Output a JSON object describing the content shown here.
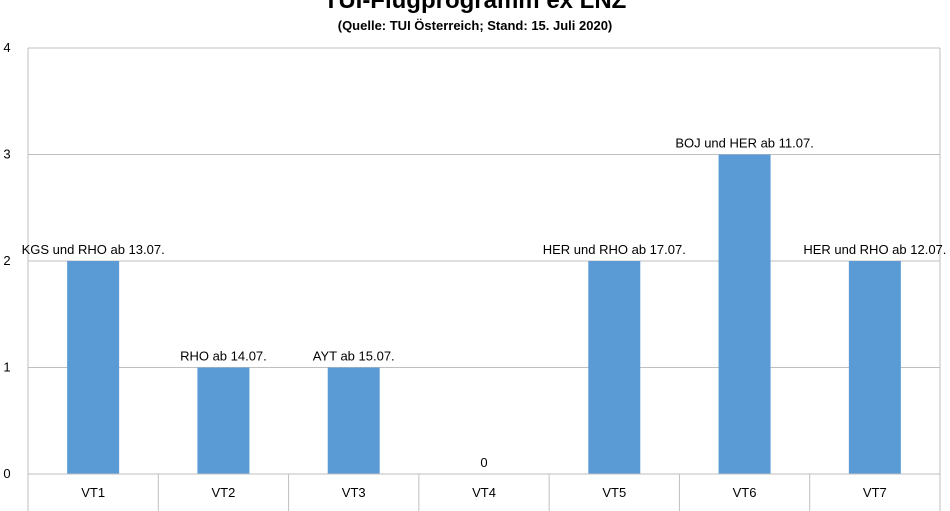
{
  "chart_data": {
    "type": "bar",
    "title": "TUI-Flugprogramm ex LNZ",
    "subtitle": "(Quelle: TUI Österreich; Stand: 15. Juli 2020)",
    "categories": [
      "VT1",
      "VT2",
      "VT3",
      "VT4",
      "VT5",
      "VT6",
      "VT7"
    ],
    "values": [
      2,
      1,
      1,
      0,
      2,
      3,
      2
    ],
    "data_labels": [
      "KGS und RHO ab 13.07.",
      "RHO ab 14.07.",
      "AYT ab 15.07.",
      "0",
      "HER und RHO ab 17.07.",
      "BOJ und HER ab 11.07.",
      "HER und RHO ab 12.07."
    ],
    "yticks": [
      "0",
      "1",
      "2",
      "3",
      "4"
    ],
    "ylim": [
      0,
      4
    ],
    "grid": true,
    "legend": "none",
    "bar_color": "#5B9BD5",
    "grid_color": "#BFBFBF"
  }
}
